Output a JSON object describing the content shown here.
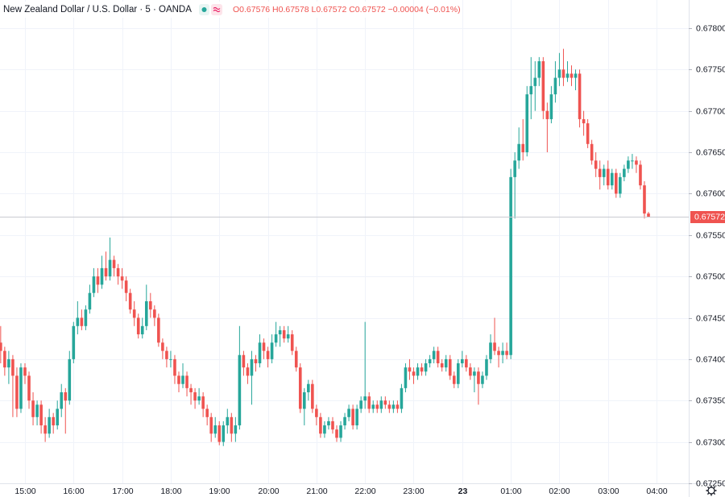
{
  "chart_data": {
    "type": "candlestick",
    "title": "New Zealand Dollar / U.S. Dollar · 5 · OANDA",
    "ohlc_legend": "O0.67576 H0.67578 L0.67572 C0.67572 −0.00004 (−0.01%)",
    "up_color": "#26a69a",
    "down_color": "#ef5350",
    "grid": true,
    "last_price": {
      "value": 0.67572,
      "label": "0.67572"
    },
    "ylim": [
      0.6725,
      0.67834
    ],
    "yticks": [
      {
        "value": 0.6725,
        "label": "0.67250"
      },
      {
        "value": 0.673,
        "label": "0.67300"
      },
      {
        "value": 0.6735,
        "label": "0.67350"
      },
      {
        "value": 0.674,
        "label": "0.67400"
      },
      {
        "value": 0.6745,
        "label": "0.67450"
      },
      {
        "value": 0.675,
        "label": "0.67500"
      },
      {
        "value": 0.6755,
        "label": "0.67550"
      },
      {
        "value": 0.676,
        "label": "0.67600"
      },
      {
        "value": 0.6765,
        "label": "0.67650"
      },
      {
        "value": 0.677,
        "label": "0.67700"
      },
      {
        "value": 0.6775,
        "label": "0.67750"
      },
      {
        "value": 0.678,
        "label": "0.67800"
      }
    ],
    "categories": [
      null,
      null,
      null,
      null,
      null,
      null,
      "15:00",
      null,
      null,
      null,
      null,
      null,
      null,
      null,
      null,
      null,
      null,
      null,
      "16:00",
      null,
      null,
      null,
      null,
      null,
      null,
      null,
      null,
      null,
      null,
      null,
      "17:00",
      null,
      null,
      null,
      null,
      null,
      null,
      null,
      null,
      null,
      null,
      null,
      "18:00",
      null,
      null,
      null,
      null,
      null,
      null,
      null,
      null,
      null,
      null,
      null,
      "19:00",
      null,
      null,
      null,
      null,
      null,
      null,
      null,
      null,
      null,
      null,
      null,
      "20:00",
      null,
      null,
      null,
      null,
      null,
      null,
      null,
      null,
      null,
      null,
      null,
      "21:00",
      null,
      null,
      null,
      null,
      null,
      null,
      null,
      null,
      null,
      null,
      null,
      "22:00",
      null,
      null,
      null,
      null,
      null,
      null,
      null,
      null,
      null,
      null,
      null,
      "23:00",
      null,
      null,
      null,
      null,
      null,
      null,
      null,
      null,
      null,
      null,
      null,
      "23",
      null,
      null,
      null,
      null,
      null,
      null,
      null,
      null,
      null,
      null,
      null,
      "01:00",
      null,
      null,
      null,
      null,
      null,
      null,
      null,
      null,
      null,
      null,
      null,
      "02:00",
      null,
      null,
      null,
      null,
      null,
      null,
      null,
      null,
      null,
      null,
      null,
      "03:00",
      null,
      null,
      null,
      null,
      null,
      null,
      null,
      null,
      null,
      null,
      null,
      "04:00"
    ],
    "ohlc": [
      [
        0.6742,
        0.6744,
        0.67395,
        0.6741
      ],
      [
        0.6741,
        0.67415,
        0.6738,
        0.6739
      ],
      [
        0.6739,
        0.6741,
        0.6737,
        0.674
      ],
      [
        0.674,
        0.67405,
        0.6733,
        0.6738
      ],
      [
        0.6738,
        0.6739,
        0.6733,
        0.6734
      ],
      [
        0.6734,
        0.67395,
        0.67335,
        0.6739
      ],
      [
        0.6739,
        0.67395,
        0.6737,
        0.6738
      ],
      [
        0.6738,
        0.67385,
        0.6734,
        0.6735
      ],
      [
        0.6735,
        0.6736,
        0.6732,
        0.6733
      ],
      [
        0.6733,
        0.6735,
        0.6732,
        0.67345
      ],
      [
        0.67345,
        0.6735,
        0.6731,
        0.6732
      ],
      [
        0.6732,
        0.6733,
        0.673,
        0.6731
      ],
      [
        0.6731,
        0.6734,
        0.67305,
        0.6733
      ],
      [
        0.6733,
        0.67335,
        0.6731,
        0.6732
      ],
      [
        0.6732,
        0.6735,
        0.67315,
        0.6734
      ],
      [
        0.6734,
        0.6737,
        0.6733,
        0.6736
      ],
      [
        0.6736,
        0.67365,
        0.6731,
        0.6735
      ],
      [
        0.6735,
        0.6741,
        0.67345,
        0.674
      ],
      [
        0.674,
        0.67445,
        0.67395,
        0.6744
      ],
      [
        0.6744,
        0.6747,
        0.6743,
        0.6745
      ],
      [
        0.6745,
        0.6746,
        0.67435,
        0.6744
      ],
      [
        0.6744,
        0.67465,
        0.67435,
        0.6746
      ],
      [
        0.6746,
        0.6749,
        0.67455,
        0.6748
      ],
      [
        0.6748,
        0.6751,
        0.67475,
        0.675
      ],
      [
        0.675,
        0.6751,
        0.6748,
        0.6749
      ],
      [
        0.6749,
        0.67525,
        0.67485,
        0.6751
      ],
      [
        0.6751,
        0.6753,
        0.67495,
        0.675
      ],
      [
        0.675,
        0.67547,
        0.67495,
        0.6752
      ],
      [
        0.6752,
        0.67525,
        0.675,
        0.6751
      ],
      [
        0.6751,
        0.67515,
        0.6749,
        0.675
      ],
      [
        0.675,
        0.6751,
        0.67485,
        0.67495
      ],
      [
        0.67495,
        0.675,
        0.6747,
        0.6748
      ],
      [
        0.6748,
        0.67485,
        0.67455,
        0.6746
      ],
      [
        0.6746,
        0.6747,
        0.6744,
        0.6745
      ],
      [
        0.6745,
        0.67455,
        0.67425,
        0.6743
      ],
      [
        0.6743,
        0.6745,
        0.67425,
        0.6744
      ],
      [
        0.6744,
        0.6749,
        0.67435,
        0.6747
      ],
      [
        0.6747,
        0.6748,
        0.6745,
        0.6746
      ],
      [
        0.6746,
        0.67465,
        0.6744,
        0.6745
      ],
      [
        0.6745,
        0.67455,
        0.67415,
        0.6742
      ],
      [
        0.6742,
        0.67425,
        0.674,
        0.6741
      ],
      [
        0.6741,
        0.67415,
        0.6739,
        0.674
      ],
      [
        0.674,
        0.6741,
        0.6739,
        0.674
      ],
      [
        0.674,
        0.67405,
        0.6737,
        0.6738
      ],
      [
        0.6738,
        0.67385,
        0.6736,
        0.6737
      ],
      [
        0.6737,
        0.67395,
        0.67365,
        0.6738
      ],
      [
        0.6738,
        0.67385,
        0.67355,
        0.67365
      ],
      [
        0.67365,
        0.6737,
        0.67345,
        0.6736
      ],
      [
        0.6736,
        0.67365,
        0.6734,
        0.6735
      ],
      [
        0.6735,
        0.67365,
        0.67345,
        0.67355
      ],
      [
        0.67355,
        0.6736,
        0.6733,
        0.6734
      ],
      [
        0.6734,
        0.67345,
        0.6732,
        0.6733
      ],
      [
        0.6733,
        0.67335,
        0.673,
        0.6731
      ],
      [
        0.6731,
        0.6733,
        0.67305,
        0.6732
      ],
      [
        0.6732,
        0.67325,
        0.67296,
        0.673
      ],
      [
        0.673,
        0.67325,
        0.67295,
        0.6732
      ],
      [
        0.6732,
        0.6734,
        0.6731,
        0.6733
      ],
      [
        0.6733,
        0.67335,
        0.673,
        0.6731
      ],
      [
        0.6731,
        0.6733,
        0.673,
        0.6732
      ],
      [
        0.6732,
        0.6744,
        0.67315,
        0.67405
      ],
      [
        0.67405,
        0.6741,
        0.6738,
        0.6739
      ],
      [
        0.6739,
        0.67395,
        0.6737,
        0.6738
      ],
      [
        0.6738,
        0.6741,
        0.67345,
        0.674
      ],
      [
        0.674,
        0.67405,
        0.67385,
        0.67395
      ],
      [
        0.67395,
        0.6743,
        0.6739,
        0.6742
      ],
      [
        0.6742,
        0.67425,
        0.674,
        0.6741
      ],
      [
        0.6741,
        0.67415,
        0.6739,
        0.674
      ],
      [
        0.674,
        0.6743,
        0.67395,
        0.6742
      ],
      [
        0.6742,
        0.67445,
        0.67415,
        0.6743
      ],
      [
        0.6743,
        0.6744,
        0.67415,
        0.67435
      ],
      [
        0.67435,
        0.6744,
        0.6742,
        0.67425
      ],
      [
        0.67425,
        0.6744,
        0.6742,
        0.6743
      ],
      [
        0.6743,
        0.67435,
        0.67405,
        0.6741
      ],
      [
        0.6741,
        0.67415,
        0.67385,
        0.6739
      ],
      [
        0.6739,
        0.67395,
        0.67335,
        0.6734
      ],
      [
        0.6734,
        0.67365,
        0.6732,
        0.6736
      ],
      [
        0.6736,
        0.67375,
        0.6735,
        0.6737
      ],
      [
        0.6737,
        0.67375,
        0.67335,
        0.6734
      ],
      [
        0.6734,
        0.67345,
        0.6732,
        0.6733
      ],
      [
        0.6733,
        0.67335,
        0.67305,
        0.6731
      ],
      [
        0.6731,
        0.67325,
        0.67305,
        0.6732
      ],
      [
        0.6732,
        0.6733,
        0.67315,
        0.67325
      ],
      [
        0.67325,
        0.6733,
        0.6731,
        0.67315
      ],
      [
        0.67315,
        0.6732,
        0.673,
        0.67305
      ],
      [
        0.67305,
        0.67325,
        0.673,
        0.6732
      ],
      [
        0.6732,
        0.67335,
        0.67315,
        0.6733
      ],
      [
        0.6733,
        0.67345,
        0.67325,
        0.6734
      ],
      [
        0.6734,
        0.67345,
        0.67315,
        0.6732
      ],
      [
        0.6732,
        0.67345,
        0.67315,
        0.6734
      ],
      [
        0.6734,
        0.67355,
        0.67335,
        0.6735
      ],
      [
        0.6735,
        0.67445,
        0.6734,
        0.67355
      ],
      [
        0.67355,
        0.6736,
        0.67335,
        0.6734
      ],
      [
        0.6734,
        0.6735,
        0.67335,
        0.67345
      ],
      [
        0.67345,
        0.6735,
        0.67335,
        0.6734
      ],
      [
        0.6734,
        0.67355,
        0.67335,
        0.6735
      ],
      [
        0.6735,
        0.67355,
        0.6734,
        0.67345
      ],
      [
        0.67345,
        0.6735,
        0.67335,
        0.6734
      ],
      [
        0.6734,
        0.6735,
        0.67335,
        0.67345
      ],
      [
        0.67345,
        0.6735,
        0.67335,
        0.6734
      ],
      [
        0.6734,
        0.6737,
        0.67335,
        0.67365
      ],
      [
        0.67365,
        0.67395,
        0.6736,
        0.6739
      ],
      [
        0.6739,
        0.674,
        0.67375,
        0.67385
      ],
      [
        0.67385,
        0.6739,
        0.6737,
        0.6738
      ],
      [
        0.6738,
        0.67395,
        0.67375,
        0.6739
      ],
      [
        0.6739,
        0.67395,
        0.6738,
        0.67385
      ],
      [
        0.67385,
        0.674,
        0.6738,
        0.67395
      ],
      [
        0.67395,
        0.67405,
        0.6739,
        0.674
      ],
      [
        0.674,
        0.67415,
        0.67395,
        0.6741
      ],
      [
        0.6741,
        0.67415,
        0.6739,
        0.67395
      ],
      [
        0.67395,
        0.674,
        0.67385,
        0.6739
      ],
      [
        0.6739,
        0.67405,
        0.67385,
        0.674
      ],
      [
        0.674,
        0.67405,
        0.67375,
        0.6738
      ],
      [
        0.6738,
        0.67385,
        0.67365,
        0.6737
      ],
      [
        0.6737,
        0.674,
        0.67365,
        0.67395
      ],
      [
        0.67395,
        0.6741,
        0.6739,
        0.674
      ],
      [
        0.674,
        0.67405,
        0.67385,
        0.6739
      ],
      [
        0.6739,
        0.67395,
        0.67375,
        0.6738
      ],
      [
        0.6738,
        0.6739,
        0.6736,
        0.67385
      ],
      [
        0.67385,
        0.6739,
        0.67345,
        0.6737
      ],
      [
        0.6737,
        0.67385,
        0.67365,
        0.6738
      ],
      [
        0.6738,
        0.67405,
        0.67375,
        0.674
      ],
      [
        0.674,
        0.6743,
        0.67395,
        0.6742
      ],
      [
        0.6742,
        0.6745,
        0.67405,
        0.6741
      ],
      [
        0.6741,
        0.67415,
        0.6739,
        0.67405
      ],
      [
        0.67405,
        0.6742,
        0.67395,
        0.6741
      ],
      [
        0.6741,
        0.6742,
        0.674,
        0.67405
      ],
      [
        0.67405,
        0.6763,
        0.674,
        0.6762
      ],
      [
        0.6762,
        0.6765,
        0.6757,
        0.6764
      ],
      [
        0.6764,
        0.6768,
        0.6763,
        0.6766
      ],
      [
        0.6766,
        0.6769,
        0.6764,
        0.6765
      ],
      [
        0.6765,
        0.6773,
        0.67645,
        0.6772
      ],
      [
        0.6772,
        0.67765,
        0.6769,
        0.6773
      ],
      [
        0.6773,
        0.6776,
        0.677,
        0.6774
      ],
      [
        0.6774,
        0.67765,
        0.6773,
        0.6776
      ],
      [
        0.6776,
        0.67765,
        0.6769,
        0.677
      ],
      [
        0.677,
        0.6771,
        0.6765,
        0.6769
      ],
      [
        0.6769,
        0.6773,
        0.67685,
        0.6772
      ],
      [
        0.6772,
        0.6776,
        0.6771,
        0.6774
      ],
      [
        0.6774,
        0.6777,
        0.6773,
        0.6775
      ],
      [
        0.6775,
        0.67775,
        0.6773,
        0.6774
      ],
      [
        0.6774,
        0.6776,
        0.67735,
        0.67745
      ],
      [
        0.67745,
        0.67755,
        0.6773,
        0.6774
      ],
      [
        0.6774,
        0.6775,
        0.67725,
        0.67745
      ],
      [
        0.67745,
        0.6775,
        0.6768,
        0.6769
      ],
      [
        0.6769,
        0.677,
        0.6767,
        0.67685
      ],
      [
        0.67685,
        0.6769,
        0.67655,
        0.6766
      ],
      [
        0.6766,
        0.67665,
        0.67635,
        0.6764
      ],
      [
        0.6764,
        0.6765,
        0.6762,
        0.6763
      ],
      [
        0.6763,
        0.6764,
        0.67605,
        0.6762
      ],
      [
        0.6762,
        0.67635,
        0.6761,
        0.6763
      ],
      [
        0.6763,
        0.6764,
        0.67605,
        0.6761
      ],
      [
        0.6761,
        0.6763,
        0.67605,
        0.67625
      ],
      [
        0.67625,
        0.6763,
        0.67595,
        0.676
      ],
      [
        0.676,
        0.67625,
        0.67595,
        0.6762
      ],
      [
        0.6762,
        0.67635,
        0.67615,
        0.6763
      ],
      [
        0.6763,
        0.67645,
        0.67625,
        0.6764
      ],
      [
        0.6764,
        0.67648,
        0.6763,
        0.6764
      ],
      [
        0.6764,
        0.67645,
        0.67625,
        0.67635
      ],
      [
        0.67635,
        0.6764,
        0.67605,
        0.6761
      ],
      [
        0.6761,
        0.67615,
        0.6757,
        0.67576
      ],
      [
        0.67576,
        0.67578,
        0.67572,
        0.67572
      ],
      null,
      null
    ]
  }
}
